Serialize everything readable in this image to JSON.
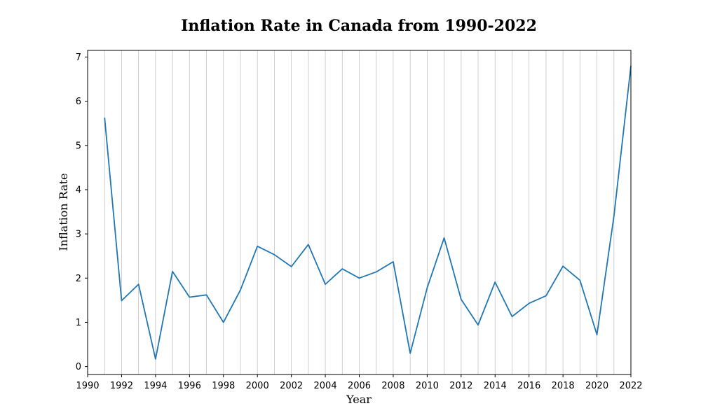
{
  "chart_data": {
    "type": "line",
    "title": "Inflation Rate in Canada from 1990-2022",
    "xlabel": "Year",
    "ylabel": "Inflation Rate",
    "xlim": [
      1990,
      2022
    ],
    "ylim": [
      -0.18,
      7.15
    ],
    "xticks": [
      1990,
      1992,
      1994,
      1996,
      1998,
      2000,
      2002,
      2004,
      2006,
      2008,
      2010,
      2012,
      2014,
      2016,
      2018,
      2020,
      2022
    ],
    "yticks": [
      0,
      1,
      2,
      3,
      4,
      5,
      6,
      7
    ],
    "grid": "vertical, every year",
    "legend": "none",
    "series": [
      {
        "color": "#1f77b4",
        "x": [
          1991,
          1992,
          1993,
          1994,
          1995,
          1996,
          1997,
          1998,
          1999,
          2000,
          2001,
          2002,
          2003,
          2004,
          2005,
          2006,
          2007,
          2008,
          2009,
          2010,
          2011,
          2012,
          2013,
          2014,
          2015,
          2016,
          2017,
          2018,
          2019,
          2020,
          2021,
          2022
        ],
        "values": [
          5.63,
          1.49,
          1.86,
          0.17,
          2.15,
          1.57,
          1.62,
          1.0,
          1.73,
          2.72,
          2.53,
          2.26,
          2.76,
          1.86,
          2.21,
          2.0,
          2.14,
          2.37,
          0.3,
          1.78,
          2.91,
          1.52,
          0.94,
          1.91,
          1.13,
          1.43,
          1.6,
          2.27,
          1.95,
          0.72,
          3.4,
          6.8
        ]
      }
    ]
  }
}
